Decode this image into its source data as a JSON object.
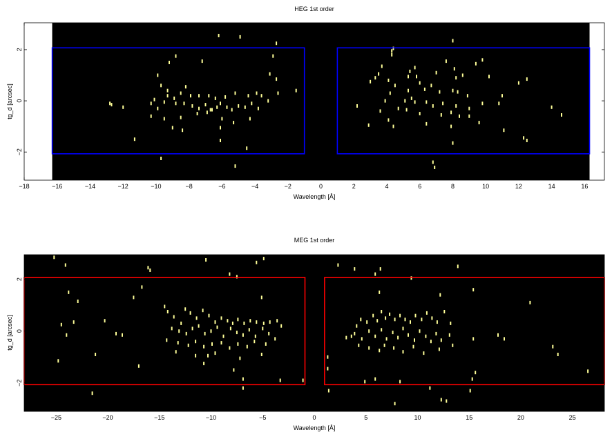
{
  "chart_data": [
    {
      "type": "scatter",
      "title": "HEG 1st order",
      "xlabel": "Wavelength [Å]",
      "ylabel": "tg_d [arcsec]",
      "xlim": [
        -18,
        17.2
      ],
      "ylim": [
        -3.1,
        3.05
      ],
      "xticks": [
        "−18",
        "−16",
        "−14",
        "−12",
        "−10",
        "−8",
        "−6",
        "−4",
        "−2",
        "0",
        "2",
        "4",
        "6",
        "8",
        "10",
        "12",
        "14",
        "16"
      ],
      "xtick_values": [
        -18,
        -16,
        -14,
        -12,
        -10,
        -8,
        -6,
        -4,
        -2,
        0,
        2,
        4,
        6,
        8,
        10,
        12,
        14,
        16
      ],
      "yticks": [
        "−2",
        "0",
        "2"
      ],
      "ytick_values": [
        -2,
        0,
        2
      ],
      "background_range": [
        -16.3,
        16.3
      ],
      "colors": {
        "image_background": "#000000",
        "events": "#ffff99",
        "regions": "#0000ff",
        "outside": "#ffffff"
      },
      "regions": [
        {
          "x0": -16.3,
          "x1": -1.0,
          "y0": -2.07,
          "y1": 2.07
        },
        {
          "x0": 1.0,
          "x1": 16.3,
          "y0": -2.07,
          "y1": 2.07
        }
      ],
      "points": [
        [
          -6.2,
          2.55
        ],
        [
          -4.9,
          2.5
        ],
        [
          -2.7,
          2.25
        ],
        [
          -2.9,
          1.75
        ],
        [
          -8.8,
          1.75
        ],
        [
          -9.2,
          1.5
        ],
        [
          -7.2,
          1.55
        ],
        [
          -9.9,
          1.0
        ],
        [
          -3.1,
          1.05
        ],
        [
          -9.7,
          0.6
        ],
        [
          -9.3,
          0.4
        ],
        [
          -8.5,
          0.3
        ],
        [
          -8.2,
          0.55
        ],
        [
          -9.3,
          0.2
        ],
        [
          -8.9,
          0.1
        ],
        [
          -7.9,
          0.2
        ],
        [
          -7.4,
          0.2
        ],
        [
          -6.8,
          0.2
        ],
        [
          -6.4,
          0.1
        ],
        [
          -5.8,
          0.15
        ],
        [
          -5.2,
          0.3
        ],
        [
          -4.4,
          0.2
        ],
        [
          -3.9,
          0.3
        ],
        [
          -3.6,
          0.2
        ],
        [
          -3.2,
          0.0
        ],
        [
          -2.6,
          0.3
        ],
        [
          -2.7,
          0.85
        ],
        [
          -1.5,
          0.4
        ],
        [
          -12.8,
          -0.1
        ],
        [
          -12.0,
          -0.25
        ],
        [
          -10.3,
          -0.1
        ],
        [
          -9.9,
          -0.3
        ],
        [
          -10.1,
          0.05
        ],
        [
          -9.5,
          -0.05
        ],
        [
          -8.8,
          -0.1
        ],
        [
          -8.3,
          -0.1
        ],
        [
          -7.8,
          -0.2
        ],
        [
          -7.4,
          -0.3
        ],
        [
          -7.0,
          -0.15
        ],
        [
          -6.7,
          -0.35
        ],
        [
          -6.3,
          -0.25
        ],
        [
          -6.1,
          -0.1
        ],
        [
          -5.7,
          -0.25
        ],
        [
          -5.4,
          -0.35
        ],
        [
          -5.0,
          -0.2
        ],
        [
          -4.6,
          -0.25
        ],
        [
          -4.2,
          -0.1
        ],
        [
          -3.8,
          -0.3
        ],
        [
          -10.3,
          -0.6
        ],
        [
          -9.5,
          -0.7
        ],
        [
          -8.5,
          -0.65
        ],
        [
          -7.5,
          -0.5
        ],
        [
          -6.9,
          -0.45
        ],
        [
          -6.0,
          -0.7
        ],
        [
          -5.3,
          -0.85
        ],
        [
          -4.3,
          -0.7
        ],
        [
          -9.0,
          -1.05
        ],
        [
          -8.4,
          -1.15
        ],
        [
          -6.1,
          -1.05
        ],
        [
          -11.3,
          -1.5
        ],
        [
          -6.1,
          -1.55
        ],
        [
          -4.5,
          -1.85
        ],
        [
          -9.7,
          -2.25
        ],
        [
          -5.2,
          -2.55
        ],
        [
          -12.7,
          -0.15
        ],
        [
          -6.6,
          -0.35
        ],
        [
          4.3,
          1.95
        ],
        [
          4.3,
          1.8
        ],
        [
          8.0,
          2.35
        ],
        [
          7.6,
          1.55
        ],
        [
          9.8,
          1.6
        ],
        [
          9.4,
          1.45
        ],
        [
          5.7,
          1.3
        ],
        [
          5.4,
          1.15
        ],
        [
          8.1,
          1.25
        ],
        [
          7.0,
          1.1
        ],
        [
          8.6,
          1.0
        ],
        [
          3.7,
          1.35
        ],
        [
          3.5,
          1.05
        ],
        [
          5.3,
          0.95
        ],
        [
          5.8,
          0.95
        ],
        [
          8.2,
          0.9
        ],
        [
          10.2,
          0.95
        ],
        [
          12.5,
          0.85
        ],
        [
          12.0,
          0.7
        ],
        [
          3.3,
          0.9
        ],
        [
          4.1,
          0.8
        ],
        [
          4.5,
          0.6
        ],
        [
          6.0,
          0.7
        ],
        [
          6.7,
          0.6
        ],
        [
          6.3,
          0.45
        ],
        [
          5.3,
          0.4
        ],
        [
          7.2,
          0.35
        ],
        [
          8.0,
          0.4
        ],
        [
          8.3,
          0.35
        ],
        [
          8.9,
          0.2
        ],
        [
          11.0,
          0.2
        ],
        [
          3.0,
          0.75
        ],
        [
          4.2,
          0.3
        ],
        [
          3.9,
          0.0
        ],
        [
          5.1,
          0.0
        ],
        [
          5.7,
          -0.05
        ],
        [
          6.4,
          -0.05
        ],
        [
          6.8,
          -0.2
        ],
        [
          7.4,
          -0.1
        ],
        [
          8.2,
          -0.2
        ],
        [
          9.0,
          -0.3
        ],
        [
          9.8,
          -0.1
        ],
        [
          10.8,
          -0.1
        ],
        [
          2.2,
          -0.2
        ],
        [
          3.6,
          -0.4
        ],
        [
          4.7,
          -0.3
        ],
        [
          5.2,
          -0.35
        ],
        [
          6.0,
          -0.5
        ],
        [
          7.3,
          -0.55
        ],
        [
          7.9,
          -0.45
        ],
        [
          8.4,
          -0.6
        ],
        [
          9.0,
          -0.6
        ],
        [
          14.0,
          -0.25
        ],
        [
          14.6,
          -0.55
        ],
        [
          2.9,
          -0.95
        ],
        [
          4.4,
          -1.0
        ],
        [
          6.4,
          -0.9
        ],
        [
          7.9,
          -1.0
        ],
        [
          9.6,
          -0.85
        ],
        [
          11.1,
          -1.15
        ],
        [
          12.3,
          -1.45
        ],
        [
          12.5,
          -1.55
        ],
        [
          8.0,
          -1.65
        ],
        [
          6.8,
          -2.4
        ],
        [
          6.9,
          -2.6
        ],
        [
          4.4,
          2.05
        ],
        [
          5.5,
          0.1
        ],
        [
          4.1,
          -0.75
        ]
      ]
    },
    {
      "type": "scatter",
      "title": "MEG 1st order",
      "xlabel": "Wavelength [Å]",
      "ylabel": "tg_d [arcsec]",
      "xlim": [
        -28.1,
        28.1
      ],
      "ylim": [
        -3.1,
        2.95
      ],
      "xticks": [
        "−25",
        "−20",
        "−15",
        "−10",
        "−5",
        "0",
        "5",
        "10",
        "15",
        "20",
        "25"
      ],
      "xtick_values": [
        -25,
        -20,
        -15,
        -10,
        -5,
        0,
        5,
        10,
        15,
        20,
        25
      ],
      "yticks": [
        "−2",
        "0",
        "2"
      ],
      "ytick_values": [
        -2,
        0,
        2
      ],
      "colors": {
        "image_background": "#000000",
        "events": "#ffff99",
        "regions": "#ff0000"
      },
      "regions": [
        {
          "x0": -28.1,
          "x1": -0.9,
          "y0": -2.07,
          "y1": 2.07
        },
        {
          "x0": 1.0,
          "x1": 28.1,
          "y0": -2.07,
          "y1": 2.07
        }
      ],
      "points": [
        [
          -25.2,
          2.85
        ],
        [
          -24.1,
          2.55
        ],
        [
          -16.1,
          2.45
        ],
        [
          -15.9,
          2.35
        ],
        [
          -10.5,
          2.75
        ],
        [
          -8.2,
          2.2
        ],
        [
          -4.9,
          2.8
        ],
        [
          -5.6,
          2.65
        ],
        [
          -7.5,
          2.1
        ],
        [
          2.3,
          2.55
        ],
        [
          3.9,
          2.4
        ],
        [
          6.4,
          2.4
        ],
        [
          5.9,
          2.2
        ],
        [
          9.4,
          2.05
        ],
        [
          13.9,
          2.5
        ],
        [
          -23.8,
          1.5
        ],
        [
          -22.9,
          1.15
        ],
        [
          -17.5,
          1.3
        ],
        [
          -16.7,
          1.7
        ],
        [
          -5.1,
          1.3
        ],
        [
          6.3,
          1.5
        ],
        [
          12.2,
          1.4
        ],
        [
          15.4,
          1.6
        ],
        [
          20.9,
          1.1
        ],
        [
          -24.5,
          0.25
        ],
        [
          -23.3,
          0.35
        ],
        [
          -20.3,
          0.4
        ],
        [
          -14.5,
          0.95
        ],
        [
          -14.2,
          0.75
        ],
        [
          -13.6,
          0.55
        ],
        [
          -12.5,
          0.85
        ],
        [
          -12.0,
          0.7
        ],
        [
          -11.4,
          0.5
        ],
        [
          -10.8,
          0.8
        ],
        [
          -10.2,
          0.6
        ],
        [
          -9.6,
          0.35
        ],
        [
          -9.0,
          0.5
        ],
        [
          -8.4,
          0.4
        ],
        [
          -7.9,
          0.3
        ],
        [
          -7.4,
          0.45
        ],
        [
          -6.8,
          0.3
        ],
        [
          -6.2,
          0.4
        ],
        [
          -5.6,
          0.35
        ],
        [
          -4.9,
          0.3
        ],
        [
          -4.3,
          0.35
        ],
        [
          -3.6,
          0.4
        ],
        [
          -3.2,
          0.2
        ],
        [
          -13.8,
          0.1
        ],
        [
          -13.1,
          0.0
        ],
        [
          -12.4,
          -0.1
        ],
        [
          -11.8,
          0.1
        ],
        [
          -11.2,
          0.2
        ],
        [
          -10.6,
          -0.1
        ],
        [
          -10.0,
          0.0
        ],
        [
          -9.4,
          0.15
        ],
        [
          -8.8,
          -0.2
        ],
        [
          -8.1,
          0.1
        ],
        [
          -7.5,
          -0.05
        ],
        [
          -6.9,
          -0.15
        ],
        [
          -6.3,
          0.05
        ],
        [
          -5.7,
          -0.2
        ],
        [
          -5.0,
          0.1
        ],
        [
          -4.4,
          -0.1
        ],
        [
          -3.8,
          -0.3
        ],
        [
          -24.0,
          -0.15
        ],
        [
          -19.2,
          -0.1
        ],
        [
          -18.6,
          -0.15
        ],
        [
          -14.3,
          -0.35
        ],
        [
          -13.2,
          -0.45
        ],
        [
          -12.2,
          -0.55
        ],
        [
          -11.5,
          -0.4
        ],
        [
          -10.7,
          -0.6
        ],
        [
          -9.9,
          -0.5
        ],
        [
          -9.0,
          -0.45
        ],
        [
          -8.2,
          -0.65
        ],
        [
          -7.4,
          -0.5
        ],
        [
          -6.5,
          -0.6
        ],
        [
          -5.8,
          -0.4
        ],
        [
          -4.7,
          -0.5
        ],
        [
          -13.4,
          -0.8
        ],
        [
          -11.5,
          -0.95
        ],
        [
          -9.6,
          -0.85
        ],
        [
          -7.2,
          -1.05
        ],
        [
          -5.1,
          -0.9
        ],
        [
          -24.8,
          -1.15
        ],
        [
          -21.2,
          -0.9
        ],
        [
          -17.0,
          -1.35
        ],
        [
          -10.7,
          -1.25
        ],
        [
          -7.8,
          -1.5
        ],
        [
          -6.9,
          -1.85
        ],
        [
          -6.9,
          -2.2
        ],
        [
          -3.3,
          -1.9
        ],
        [
          -1.1,
          -1.9
        ],
        [
          -21.5,
          -2.4
        ],
        [
          1.3,
          -1.0
        ],
        [
          1.3,
          -1.45
        ],
        [
          1.4,
          -2.3
        ],
        [
          3.6,
          -0.2
        ],
        [
          4.1,
          0.2
        ],
        [
          4.5,
          0.45
        ],
        [
          5.1,
          0.35
        ],
        [
          5.7,
          0.6
        ],
        [
          6.1,
          0.4
        ],
        [
          6.5,
          0.75
        ],
        [
          6.9,
          0.5
        ],
        [
          7.3,
          0.65
        ],
        [
          7.8,
          0.45
        ],
        [
          8.3,
          0.6
        ],
        [
          8.8,
          0.45
        ],
        [
          9.3,
          0.35
        ],
        [
          9.8,
          0.6
        ],
        [
          10.4,
          0.45
        ],
        [
          10.9,
          0.7
        ],
        [
          11.4,
          0.5
        ],
        [
          11.9,
          0.35
        ],
        [
          12.6,
          0.75
        ],
        [
          13.2,
          0.3
        ],
        [
          3.1,
          -0.25
        ],
        [
          3.9,
          -0.1
        ],
        [
          4.6,
          -0.3
        ],
        [
          5.3,
          0.0
        ],
        [
          5.9,
          -0.2
        ],
        [
          6.5,
          0.05
        ],
        [
          7.0,
          -0.3
        ],
        [
          7.6,
          -0.05
        ],
        [
          8.1,
          -0.25
        ],
        [
          8.6,
          0.1
        ],
        [
          9.1,
          -0.15
        ],
        [
          9.7,
          -0.35
        ],
        [
          10.2,
          0.0
        ],
        [
          10.8,
          -0.2
        ],
        [
          11.3,
          -0.4
        ],
        [
          11.8,
          -0.1
        ],
        [
          12.3,
          -0.35
        ],
        [
          13.1,
          -0.15
        ],
        [
          15.4,
          -0.3
        ],
        [
          17.8,
          -0.15
        ],
        [
          18.4,
          -0.3
        ],
        [
          4.3,
          -0.55
        ],
        [
          5.3,
          -0.65
        ],
        [
          6.3,
          -0.75
        ],
        [
          6.8,
          -0.55
        ],
        [
          7.7,
          -0.65
        ],
        [
          8.6,
          -0.8
        ],
        [
          9.6,
          -0.6
        ],
        [
          10.6,
          -0.85
        ],
        [
          12.1,
          -0.7
        ],
        [
          13.4,
          -0.55
        ],
        [
          23.1,
          -0.6
        ],
        [
          23.6,
          -0.9
        ],
        [
          4.9,
          -1.95
        ],
        [
          5.9,
          -1.85
        ],
        [
          8.3,
          -1.95
        ],
        [
          11.2,
          -2.2
        ],
        [
          15.1,
          -2.3
        ],
        [
          15.3,
          -1.85
        ],
        [
          15.6,
          -1.6
        ],
        [
          26.5,
          -1.55
        ],
        [
          7.8,
          -2.8
        ],
        [
          12.3,
          -2.65
        ],
        [
          12.8,
          -2.7
        ],
        [
          -10.3,
          -0.95
        ],
        [
          -12.9,
          0.3
        ]
      ]
    }
  ]
}
